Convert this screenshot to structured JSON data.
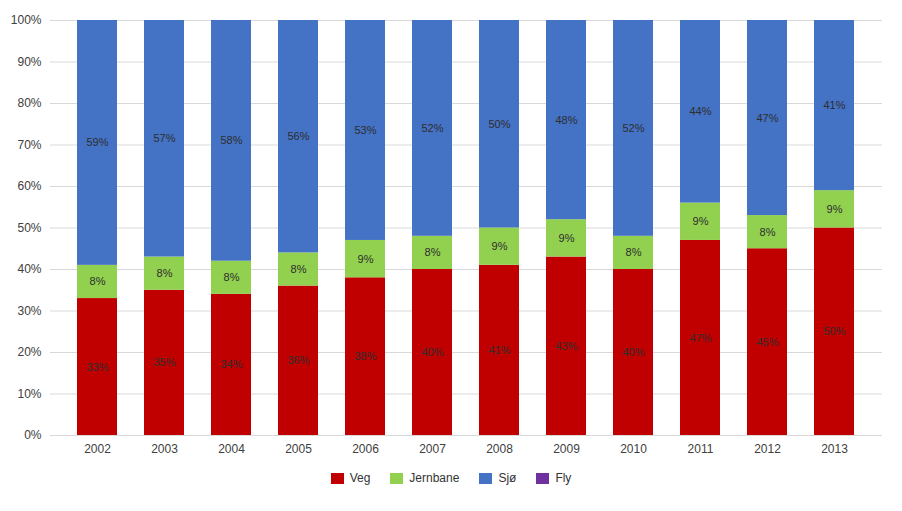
{
  "chart_data": {
    "type": "bar",
    "stacked": true,
    "categories": [
      "2002",
      "2003",
      "2004",
      "2005",
      "2006",
      "2007",
      "2008",
      "2009",
      "2010",
      "2011",
      "2012",
      "2013"
    ],
    "series": [
      {
        "name": "Veg",
        "color": "#c00000",
        "values": [
          33,
          35,
          34,
          36,
          38,
          40,
          41,
          43,
          40,
          47,
          45,
          50
        ],
        "value_labels": [
          "33%",
          "35%",
          "34%",
          "36%",
          "38%",
          "40%",
          "41%",
          "43%",
          "40%",
          "47%",
          "45%",
          "50%"
        ]
      },
      {
        "name": "Jernbane",
        "color": "#92d050",
        "values": [
          8,
          8,
          8,
          8,
          9,
          8,
          9,
          9,
          8,
          9,
          8,
          9
        ],
        "value_labels": [
          "8%",
          "8%",
          "8%",
          "8%",
          "9%",
          "8%",
          "9%",
          "9%",
          "8%",
          "9%",
          "8%",
          "9%"
        ]
      },
      {
        "name": "Sjø",
        "color": "#4472c4",
        "values": [
          59,
          57,
          58,
          56,
          53,
          52,
          50,
          48,
          52,
          44,
          47,
          41
        ],
        "value_labels": [
          "59%",
          "57%",
          "58%",
          "56%",
          "53%",
          "52%",
          "50%",
          "48%",
          "52%",
          "44%",
          "47%",
          "41%"
        ]
      },
      {
        "name": "Fly",
        "color": "#7030a0",
        "values": [
          0,
          0,
          0,
          0,
          0,
          0,
          0,
          0,
          0,
          0,
          0,
          0
        ]
      }
    ],
    "ylim": [
      0,
      100
    ],
    "yticks": [
      {
        "value": 0,
        "label": "0%"
      },
      {
        "value": 10,
        "label": "10%"
      },
      {
        "value": 20,
        "label": "20%"
      },
      {
        "value": 30,
        "label": "30%"
      },
      {
        "value": 40,
        "label": "40%"
      },
      {
        "value": 50,
        "label": "50%"
      },
      {
        "value": 60,
        "label": "60%"
      },
      {
        "value": 70,
        "label": "70%"
      },
      {
        "value": 80,
        "label": "80%"
      },
      {
        "value": 90,
        "label": "90%"
      },
      {
        "value": 100,
        "label": "100%"
      }
    ],
    "grid": true,
    "data_labels": true,
    "legend": "bottom"
  }
}
